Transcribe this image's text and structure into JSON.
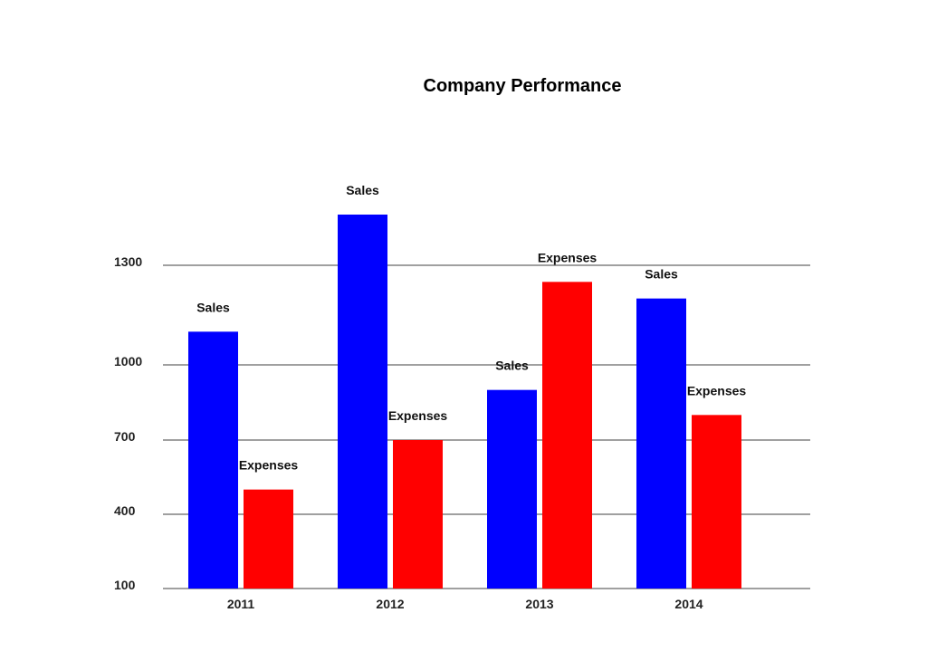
{
  "chart_data": {
    "type": "bar",
    "title": "Company Performance",
    "xlabel": "",
    "ylabel": "",
    "categories": [
      "2011",
      "2012",
      "2013",
      "2014"
    ],
    "series": [
      {
        "name": "Sales",
        "color": "#0000ff",
        "values": [
          1100,
          1500,
          900,
          1200
        ]
      },
      {
        "name": "Expenses",
        "color": "#ff0000",
        "values": [
          500,
          700,
          1250,
          800
        ]
      }
    ],
    "yticks": [
      100,
      400,
      700,
      1000,
      1300
    ],
    "ylim": [
      100,
      1400
    ],
    "grid": true,
    "legend": "none",
    "data_labels": "series name above each bar"
  }
}
